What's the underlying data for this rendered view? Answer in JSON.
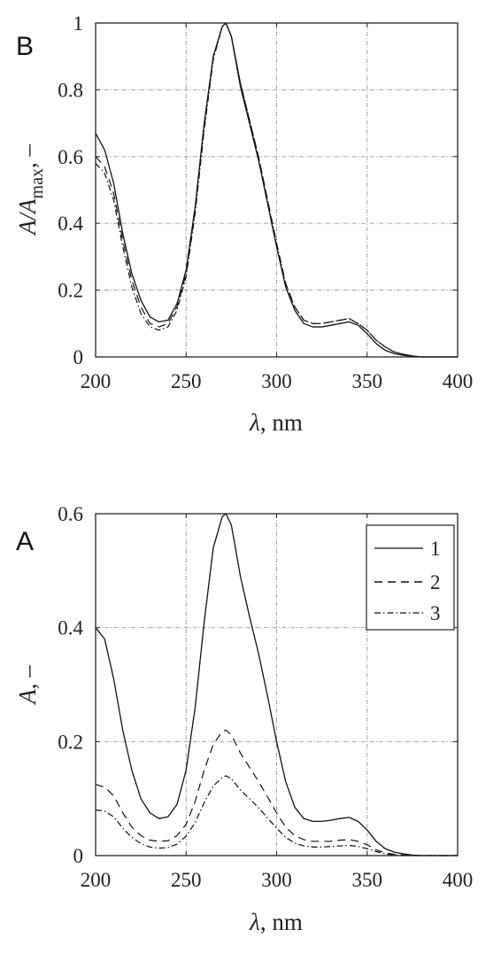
{
  "chart_data": [
    {
      "panel_letter": "B",
      "type": "line",
      "xlabel": {
        "symbol": "λ",
        "unit": ", nm"
      },
      "ylabel": {
        "symbol": "A/A",
        "subscript": "max",
        "unit": ", –"
      },
      "xlim": [
        200,
        400
      ],
      "ylim": [
        0,
        1
      ],
      "xticks": [
        200,
        250,
        300,
        350,
        400
      ],
      "yticks": [
        0,
        0.2,
        0.4,
        0.6,
        0.8,
        1
      ],
      "ytick_labels": [
        "0",
        "0.2",
        "0.4",
        "0.6",
        "0.8",
        "1"
      ],
      "grid": true,
      "series": [
        {
          "style": "solid",
          "x": [
            200,
            205,
            210,
            215,
            220,
            225,
            230,
            235,
            240,
            245,
            250,
            255,
            260,
            265,
            270,
            272,
            275,
            280,
            285,
            290,
            295,
            300,
            305,
            310,
            315,
            320,
            325,
            330,
            335,
            340,
            345,
            350,
            355,
            360,
            365,
            370,
            375,
            380,
            390,
            400
          ],
          "y": [
            0.67,
            0.62,
            0.52,
            0.37,
            0.25,
            0.17,
            0.12,
            0.105,
            0.11,
            0.16,
            0.26,
            0.45,
            0.7,
            0.9,
            0.99,
            1.0,
            0.96,
            0.81,
            0.7,
            0.59,
            0.46,
            0.33,
            0.21,
            0.14,
            0.1,
            0.09,
            0.09,
            0.095,
            0.1,
            0.105,
            0.095,
            0.07,
            0.04,
            0.02,
            0.01,
            0.005,
            0.002,
            0.0,
            0.0,
            0.0
          ]
        },
        {
          "style": "dashed",
          "x": [
            200,
            205,
            210,
            215,
            220,
            225,
            230,
            235,
            240,
            245,
            250,
            255,
            260,
            265,
            270,
            272,
            275,
            280,
            285,
            290,
            295,
            300,
            305,
            310,
            315,
            320,
            325,
            330,
            335,
            340,
            345,
            350,
            355,
            360,
            365,
            370,
            375,
            380,
            390,
            400
          ],
          "y": [
            0.6,
            0.57,
            0.49,
            0.35,
            0.23,
            0.15,
            0.1,
            0.09,
            0.1,
            0.15,
            0.25,
            0.44,
            0.69,
            0.9,
            0.99,
            1.0,
            0.96,
            0.82,
            0.71,
            0.6,
            0.47,
            0.34,
            0.22,
            0.15,
            0.11,
            0.1,
            0.1,
            0.105,
            0.11,
            0.115,
            0.1,
            0.08,
            0.05,
            0.03,
            0.015,
            0.008,
            0.003,
            0.0,
            0.0,
            0.0
          ]
        },
        {
          "style": "dashdot",
          "x": [
            200,
            205,
            210,
            215,
            220,
            225,
            230,
            235,
            240,
            245,
            250,
            255,
            260,
            265,
            270,
            272,
            275,
            280,
            285,
            290,
            295,
            300,
            305,
            310,
            315,
            320,
            325,
            330,
            335,
            340,
            345,
            350,
            355,
            360,
            365,
            370,
            375,
            380,
            390,
            400
          ],
          "y": [
            0.58,
            0.55,
            0.47,
            0.33,
            0.21,
            0.13,
            0.09,
            0.08,
            0.09,
            0.14,
            0.24,
            0.43,
            0.68,
            0.89,
            0.99,
            1.0,
            0.96,
            0.82,
            0.71,
            0.6,
            0.47,
            0.34,
            0.22,
            0.15,
            0.11,
            0.1,
            0.1,
            0.105,
            0.11,
            0.115,
            0.1,
            0.08,
            0.05,
            0.03,
            0.015,
            0.008,
            0.003,
            0.0,
            0.0,
            0.0
          ]
        }
      ]
    },
    {
      "panel_letter": "A",
      "type": "line",
      "xlabel": {
        "symbol": "λ",
        "unit": ", nm"
      },
      "ylabel": {
        "symbol": "A",
        "unit": ", –"
      },
      "xlim": [
        200,
        400
      ],
      "ylim": [
        0,
        0.6
      ],
      "xticks": [
        200,
        250,
        300,
        350,
        400
      ],
      "yticks": [
        0,
        0.2,
        0.4,
        0.6
      ],
      "ytick_labels": [
        "0",
        "0.2",
        "0.4",
        "0.6"
      ],
      "grid": true,
      "legend_position": "top-right",
      "series": [
        {
          "name": "1",
          "style": "solid",
          "x": [
            200,
            205,
            210,
            215,
            220,
            225,
            230,
            235,
            240,
            245,
            250,
            255,
            260,
            265,
            270,
            272,
            275,
            280,
            285,
            290,
            295,
            300,
            305,
            310,
            315,
            320,
            325,
            330,
            335,
            340,
            345,
            350,
            355,
            360,
            365,
            370,
            375,
            380,
            390,
            400
          ],
          "y": [
            0.4,
            0.38,
            0.31,
            0.22,
            0.15,
            0.1,
            0.075,
            0.065,
            0.068,
            0.09,
            0.15,
            0.26,
            0.41,
            0.54,
            0.595,
            0.6,
            0.58,
            0.49,
            0.42,
            0.355,
            0.28,
            0.2,
            0.13,
            0.085,
            0.065,
            0.06,
            0.06,
            0.062,
            0.065,
            0.067,
            0.06,
            0.045,
            0.025,
            0.012,
            0.006,
            0.003,
            0.001,
            0.0,
            0.0,
            0.0
          ]
        },
        {
          "name": "2",
          "style": "dashed",
          "x": [
            200,
            205,
            210,
            215,
            220,
            225,
            230,
            235,
            240,
            245,
            250,
            255,
            260,
            265,
            270,
            272,
            275,
            280,
            285,
            290,
            295,
            300,
            305,
            310,
            315,
            320,
            325,
            330,
            335,
            340,
            345,
            350,
            355,
            360,
            365,
            370,
            375,
            380,
            390,
            400
          ],
          "y": [
            0.125,
            0.12,
            0.105,
            0.075,
            0.05,
            0.035,
            0.027,
            0.025,
            0.026,
            0.035,
            0.055,
            0.095,
            0.15,
            0.195,
            0.218,
            0.22,
            0.212,
            0.18,
            0.155,
            0.13,
            0.103,
            0.075,
            0.05,
            0.035,
            0.028,
            0.025,
            0.025,
            0.025,
            0.027,
            0.028,
            0.025,
            0.019,
            0.01,
            0.005,
            0.002,
            0.001,
            0.0,
            0.0,
            0.0,
            0.0
          ]
        },
        {
          "name": "3",
          "style": "dashdot",
          "x": [
            200,
            205,
            210,
            215,
            220,
            225,
            230,
            235,
            240,
            245,
            250,
            255,
            260,
            265,
            270,
            272,
            275,
            280,
            285,
            290,
            295,
            300,
            305,
            310,
            315,
            320,
            325,
            330,
            335,
            340,
            345,
            350,
            355,
            360,
            365,
            370,
            375,
            380,
            390,
            400
          ],
          "y": [
            0.08,
            0.078,
            0.068,
            0.048,
            0.032,
            0.021,
            0.015,
            0.013,
            0.014,
            0.02,
            0.034,
            0.058,
            0.093,
            0.122,
            0.137,
            0.14,
            0.135,
            0.115,
            0.1,
            0.084,
            0.066,
            0.048,
            0.032,
            0.022,
            0.017,
            0.015,
            0.015,
            0.016,
            0.017,
            0.018,
            0.016,
            0.012,
            0.007,
            0.003,
            0.001,
            0.0,
            0.0,
            0.0,
            0.0,
            0.0
          ]
        }
      ]
    }
  ]
}
